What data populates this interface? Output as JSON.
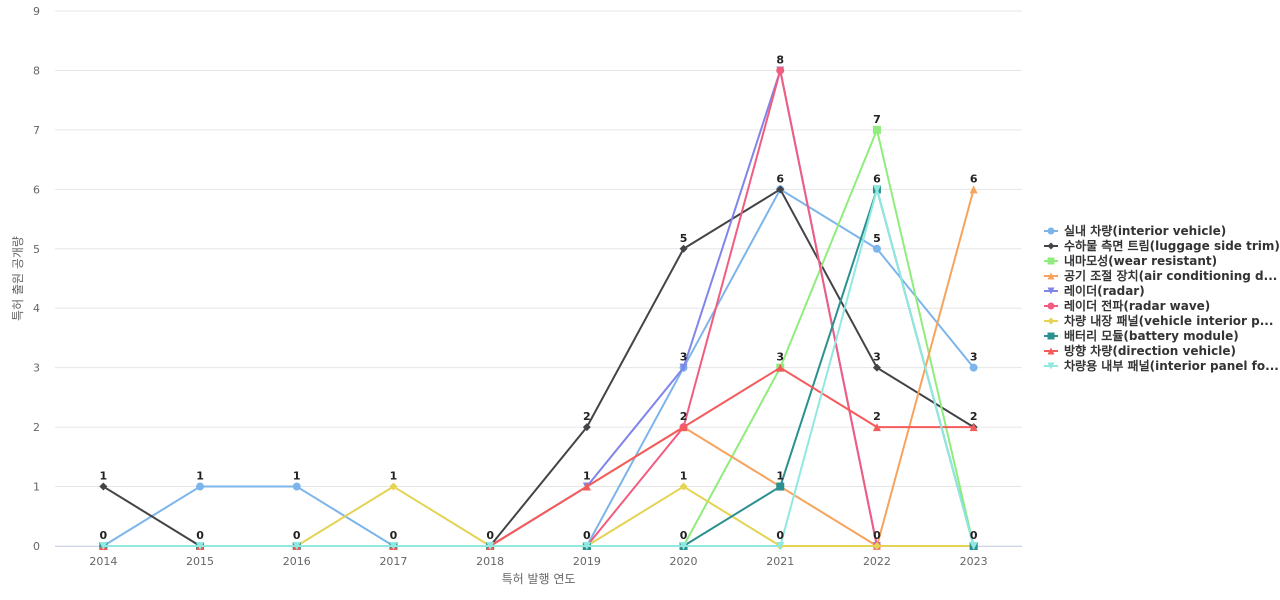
{
  "chart_data": {
    "type": "line",
    "xlabel": "특허 발행 연도",
    "ylabel": "특허 출원 공개량",
    "ylim": [
      0,
      9
    ],
    "yticks": [
      0,
      1,
      2,
      3,
      4,
      5,
      6,
      7,
      8,
      9
    ],
    "grid": true,
    "legend_position": "right",
    "x": [
      "2014",
      "2015",
      "2016",
      "2017",
      "2018",
      "2019",
      "2020",
      "2021",
      "2022",
      "2023"
    ],
    "series": [
      {
        "name": "실내 차량(interior vehicle)",
        "color": "#7cb5ec",
        "marker": "circle",
        "values": [
          0,
          1,
          1,
          0,
          0,
          0,
          3,
          6,
          5,
          3
        ]
      },
      {
        "name": "수하물 측면 트림(luggage side trim)",
        "color": "#434348",
        "marker": "diamond",
        "values": [
          1,
          0,
          0,
          0,
          0,
          2,
          5,
          6,
          3,
          2
        ]
      },
      {
        "name": "내마모성(wear resistant)",
        "color": "#90ed7d",
        "marker": "square",
        "values": [
          0,
          0,
          0,
          0,
          0,
          0,
          0,
          3,
          7,
          0
        ]
      },
      {
        "name": "공기 조절 장치(air conditioning d...",
        "color": "#f7a35c",
        "marker": "triangle",
        "values": [
          0,
          0,
          0,
          0,
          0,
          1,
          2,
          1,
          0,
          6
        ]
      },
      {
        "name": "레이더(radar)",
        "color": "#8085e9",
        "marker": "triangle-down",
        "values": [
          0,
          0,
          0,
          0,
          0,
          1,
          3,
          8,
          0,
          0
        ]
      },
      {
        "name": "레이더 전파(radar wave)",
        "color": "#f15c80",
        "marker": "circle",
        "values": [
          0,
          0,
          0,
          0,
          0,
          0,
          2,
          8,
          0,
          0
        ]
      },
      {
        "name": "차량 내장 패널(vehicle interior p...",
        "color": "#e4d354",
        "marker": "diamond",
        "values": [
          0,
          0,
          0,
          1,
          0,
          0,
          1,
          0,
          0,
          0
        ]
      },
      {
        "name": "배터리 모듈(battery module)",
        "color": "#2b908f",
        "marker": "square",
        "values": [
          0,
          0,
          0,
          0,
          0,
          0,
          0,
          1,
          6,
          0
        ]
      },
      {
        "name": "방향 차량(direction vehicle)",
        "color": "#f45b5b",
        "marker": "triangle",
        "values": [
          0,
          0,
          0,
          0,
          0,
          1,
          2,
          3,
          2,
          2
        ]
      },
      {
        "name": "차량용 내부 패널(interior panel fo...",
        "color": "#91e8e1",
        "marker": "triangle-down",
        "values": [
          0,
          0,
          0,
          0,
          0,
          0,
          0,
          0,
          6,
          0
        ]
      }
    ],
    "data_labels": [
      {
        "x": "2014",
        "value": 1,
        "series_index": 1
      },
      {
        "x": "2014",
        "value": 0,
        "series_index": 0
      },
      {
        "x": "2015",
        "value": 1,
        "series_index": 0
      },
      {
        "x": "2015",
        "value": 0,
        "series_index": 1
      },
      {
        "x": "2016",
        "value": 1,
        "series_index": 0
      },
      {
        "x": "2016",
        "value": 0,
        "series_index": 1
      },
      {
        "x": "2017",
        "value": 1,
        "series_index": 6
      },
      {
        "x": "2017",
        "value": 0,
        "series_index": 0
      },
      {
        "x": "2018",
        "value": 0,
        "series_index": 0
      },
      {
        "x": "2019",
        "value": 2,
        "series_index": 1
      },
      {
        "x": "2019",
        "value": 1,
        "series_index": 3
      },
      {
        "x": "2019",
        "value": 0,
        "series_index": 0
      },
      {
        "x": "2020",
        "value": 5,
        "series_index": 1
      },
      {
        "x": "2020",
        "value": 3,
        "series_index": 0
      },
      {
        "x": "2020",
        "value": 2,
        "series_index": 3
      },
      {
        "x": "2020",
        "value": 1,
        "series_index": 6
      },
      {
        "x": "2020",
        "value": 0,
        "series_index": 2
      },
      {
        "x": "2021",
        "value": 8,
        "series_index": 4
      },
      {
        "x": "2021",
        "value": 6,
        "series_index": 0
      },
      {
        "x": "2021",
        "value": 3,
        "series_index": 2
      },
      {
        "x": "2021",
        "value": 1,
        "series_index": 3
      },
      {
        "x": "2021",
        "value": 0,
        "series_index": 6
      },
      {
        "x": "2022",
        "value": 7,
        "series_index": 2
      },
      {
        "x": "2022",
        "value": 6,
        "series_index": 7
      },
      {
        "x": "2022",
        "value": 5,
        "series_index": 0
      },
      {
        "x": "2022",
        "value": 3,
        "series_index": 1
      },
      {
        "x": "2022",
        "value": 2,
        "series_index": 8
      },
      {
        "x": "2022",
        "value": 0,
        "series_index": 3
      },
      {
        "x": "2023",
        "value": 6,
        "series_index": 3
      },
      {
        "x": "2023",
        "value": 3,
        "series_index": 0
      },
      {
        "x": "2023",
        "value": 2,
        "series_index": 1
      },
      {
        "x": "2023",
        "value": 0,
        "series_index": 2
      }
    ]
  }
}
